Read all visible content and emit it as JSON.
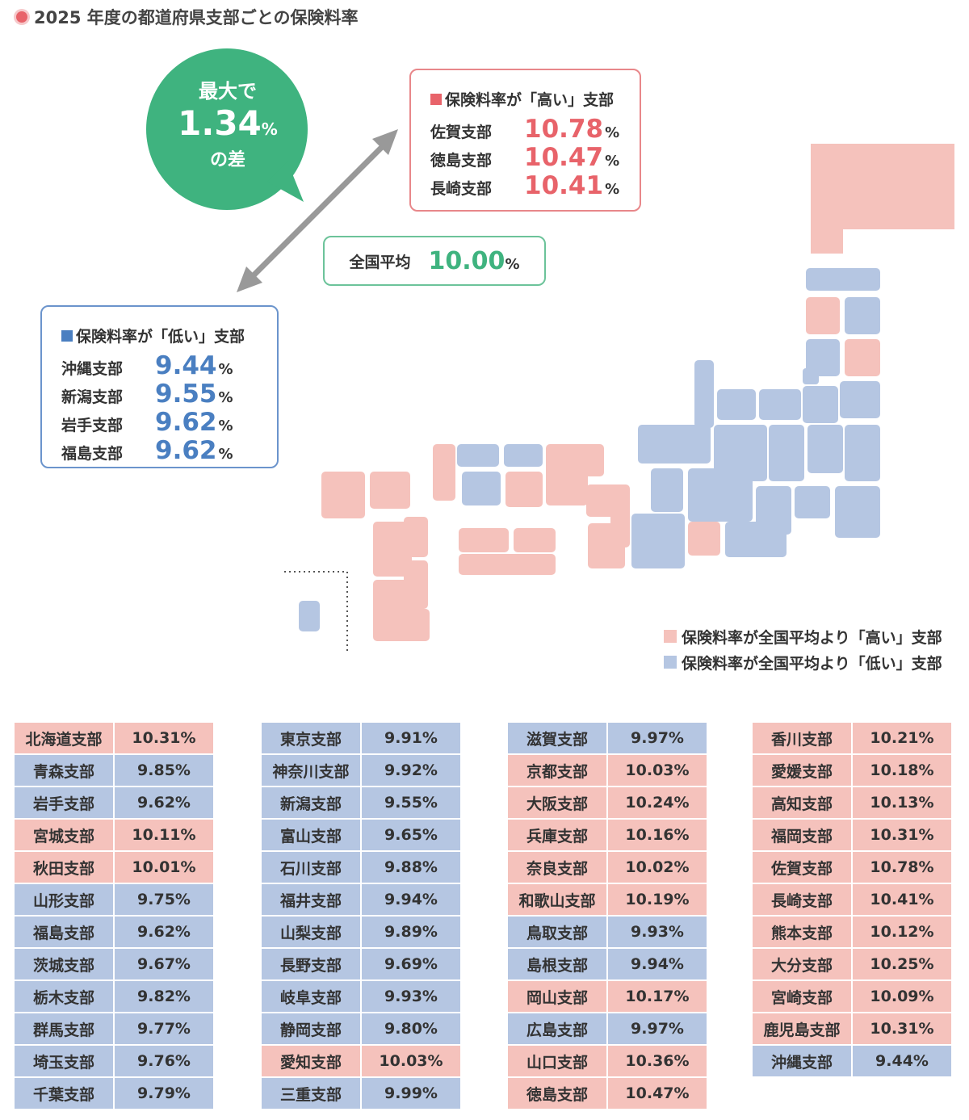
{
  "title": "2025 年度の都道府県支部ごとの保険料率",
  "bubble": {
    "line1": "最大で",
    "value": "1.34",
    "unit": "%",
    "line3": "の差"
  },
  "high_box": {
    "heading": "保険料率が「高い」支部",
    "items": [
      {
        "name": "佐賀支部",
        "value": "10.78"
      },
      {
        "name": "徳島支部",
        "value": "10.47"
      },
      {
        "name": "長崎支部",
        "value": "10.41"
      }
    ]
  },
  "low_box": {
    "heading": "保険料率が「低い」支部",
    "items": [
      {
        "name": "沖縄支部",
        "value": "9.44"
      },
      {
        "name": "新潟支部",
        "value": "9.55"
      },
      {
        "name": "岩手支部",
        "value": "9.62"
      },
      {
        "name": "福島支部",
        "value": "9.62"
      }
    ]
  },
  "average": {
    "label": "全国平均",
    "value": "10.00",
    "unit": "%"
  },
  "percent_sign": "%",
  "legend": {
    "high": "保険料率が全国平均より「高い」支部",
    "low": "保険料率が全国平均より「低い」支部"
  },
  "colors": {
    "high": "#f5c2bc",
    "low": "#b5c6e2",
    "accent_green": "#3fb37f",
    "accent_red": "#e8636a",
    "accent_blue": "#4a7fc1"
  },
  "chart_data": {
    "type": "table",
    "title": "2025 年度の都道府県支部ごとの保険料率",
    "national_average": 10.0,
    "columns": [
      [
        {
          "name": "北海道支部",
          "rate": "10.31%"
        },
        {
          "name": "青森支部",
          "rate": "9.85%"
        },
        {
          "name": "岩手支部",
          "rate": "9.62%"
        },
        {
          "name": "宮城支部",
          "rate": "10.11%"
        },
        {
          "name": "秋田支部",
          "rate": "10.01%"
        },
        {
          "name": "山形支部",
          "rate": "9.75%"
        },
        {
          "name": "福島支部",
          "rate": "9.62%"
        },
        {
          "name": "茨城支部",
          "rate": "9.67%"
        },
        {
          "name": "栃木支部",
          "rate": "9.82%"
        },
        {
          "name": "群馬支部",
          "rate": "9.77%"
        },
        {
          "name": "埼玉支部",
          "rate": "9.76%"
        },
        {
          "name": "千葉支部",
          "rate": "9.79%"
        }
      ],
      [
        {
          "name": "東京支部",
          "rate": "9.91%"
        },
        {
          "name": "神奈川支部",
          "rate": "9.92%"
        },
        {
          "name": "新潟支部",
          "rate": "9.55%"
        },
        {
          "name": "富山支部",
          "rate": "9.65%"
        },
        {
          "name": "石川支部",
          "rate": "9.88%"
        },
        {
          "name": "福井支部",
          "rate": "9.94%"
        },
        {
          "name": "山梨支部",
          "rate": "9.89%"
        },
        {
          "name": "長野支部",
          "rate": "9.69%"
        },
        {
          "name": "岐阜支部",
          "rate": "9.93%"
        },
        {
          "name": "静岡支部",
          "rate": "9.80%"
        },
        {
          "name": "愛知支部",
          "rate": "10.03%"
        },
        {
          "name": "三重支部",
          "rate": "9.99%"
        }
      ],
      [
        {
          "name": "滋賀支部",
          "rate": "9.97%"
        },
        {
          "name": "京都支部",
          "rate": "10.03%"
        },
        {
          "name": "大阪支部",
          "rate": "10.24%"
        },
        {
          "name": "兵庫支部",
          "rate": "10.16%"
        },
        {
          "name": "奈良支部",
          "rate": "10.02%"
        },
        {
          "name": "和歌山支部",
          "rate": "10.19%"
        },
        {
          "name": "鳥取支部",
          "rate": "9.93%"
        },
        {
          "name": "島根支部",
          "rate": "9.94%"
        },
        {
          "name": "岡山支部",
          "rate": "10.17%"
        },
        {
          "name": "広島支部",
          "rate": "9.97%"
        },
        {
          "name": "山口支部",
          "rate": "10.36%"
        },
        {
          "name": "徳島支部",
          "rate": "10.47%"
        }
      ],
      [
        {
          "name": "香川支部",
          "rate": "10.21%"
        },
        {
          "name": "愛媛支部",
          "rate": "10.18%"
        },
        {
          "name": "高知支部",
          "rate": "10.13%"
        },
        {
          "name": "福岡支部",
          "rate": "10.31%"
        },
        {
          "name": "佐賀支部",
          "rate": "10.78%"
        },
        {
          "name": "長崎支部",
          "rate": "10.41%"
        },
        {
          "name": "熊本支部",
          "rate": "10.12%"
        },
        {
          "name": "大分支部",
          "rate": "10.25%"
        },
        {
          "name": "宮崎支部",
          "rate": "10.09%"
        },
        {
          "name": "鹿児島支部",
          "rate": "10.31%"
        },
        {
          "name": "沖縄支部",
          "rate": "9.44%"
        }
      ]
    ]
  }
}
